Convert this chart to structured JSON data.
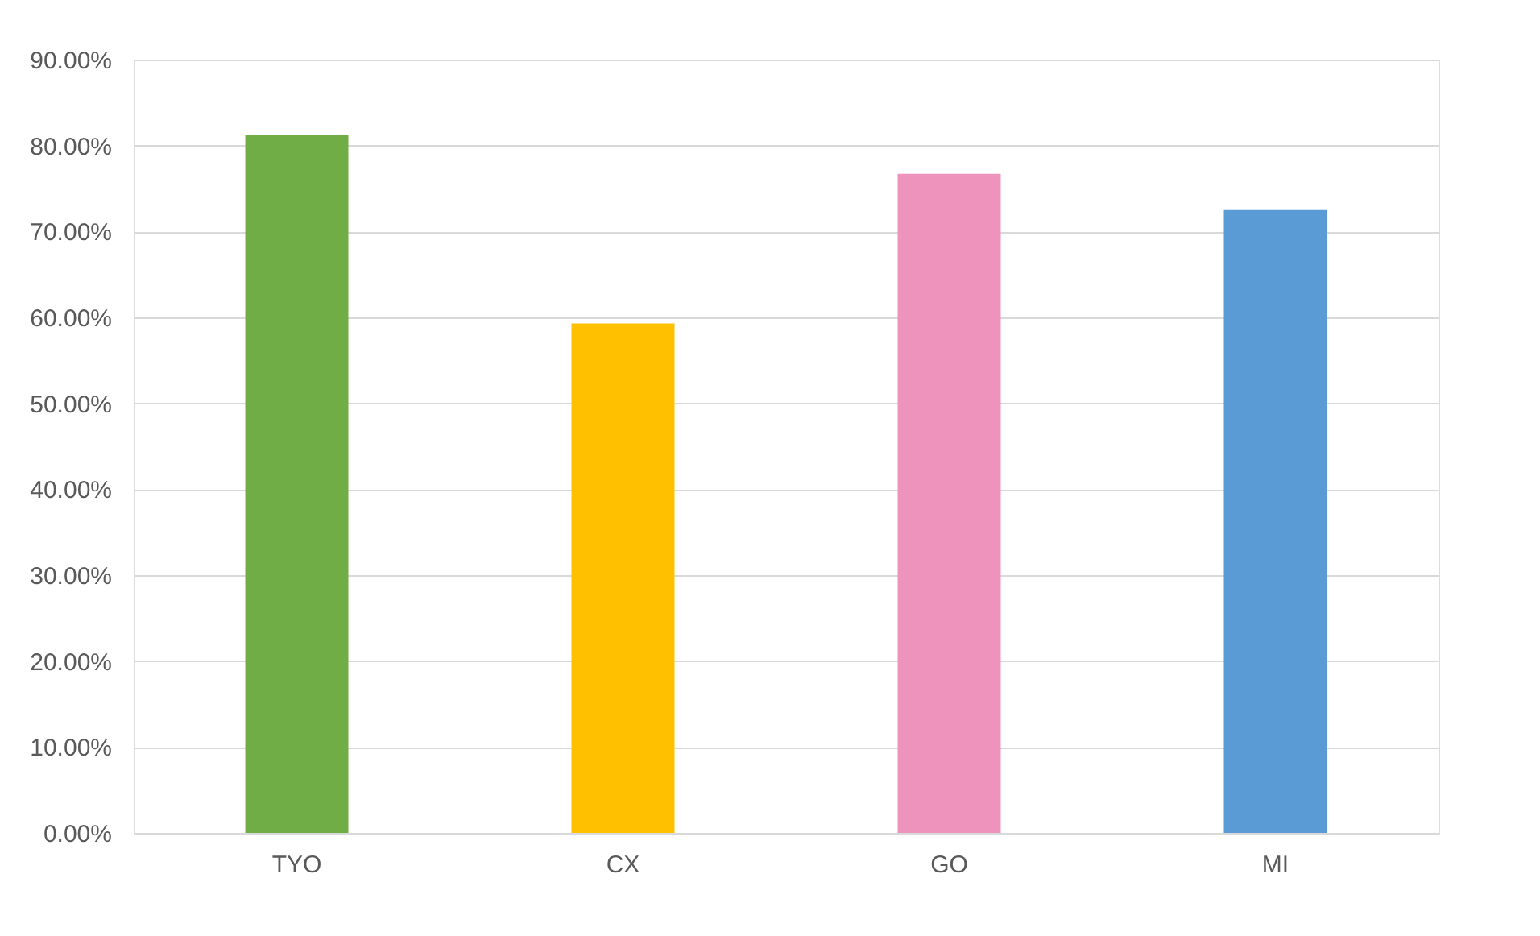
{
  "chart_data": {
    "type": "bar",
    "categories": [
      "TYO",
      "CX",
      "GO",
      "MI"
    ],
    "values": [
      81.2,
      59.3,
      76.7,
      72.5
    ],
    "colors": [
      "#70ad47",
      "#ffc000",
      "#ee94bc",
      "#5b9bd5"
    ],
    "ylim": [
      0,
      90
    ],
    "yticks": [
      {
        "value": 0,
        "label": "0.00%"
      },
      {
        "value": 10,
        "label": "10.00%"
      },
      {
        "value": 20,
        "label": "20.00%"
      },
      {
        "value": 30,
        "label": "30.00%"
      },
      {
        "value": 40,
        "label": "40.00%"
      },
      {
        "value": 50,
        "label": "50.00%"
      },
      {
        "value": 60,
        "label": "60.00%"
      },
      {
        "value": 70,
        "label": "70.00%"
      },
      {
        "value": 80,
        "label": "80.00%"
      },
      {
        "value": 90,
        "label": "90.00%"
      }
    ],
    "grid": "y"
  }
}
